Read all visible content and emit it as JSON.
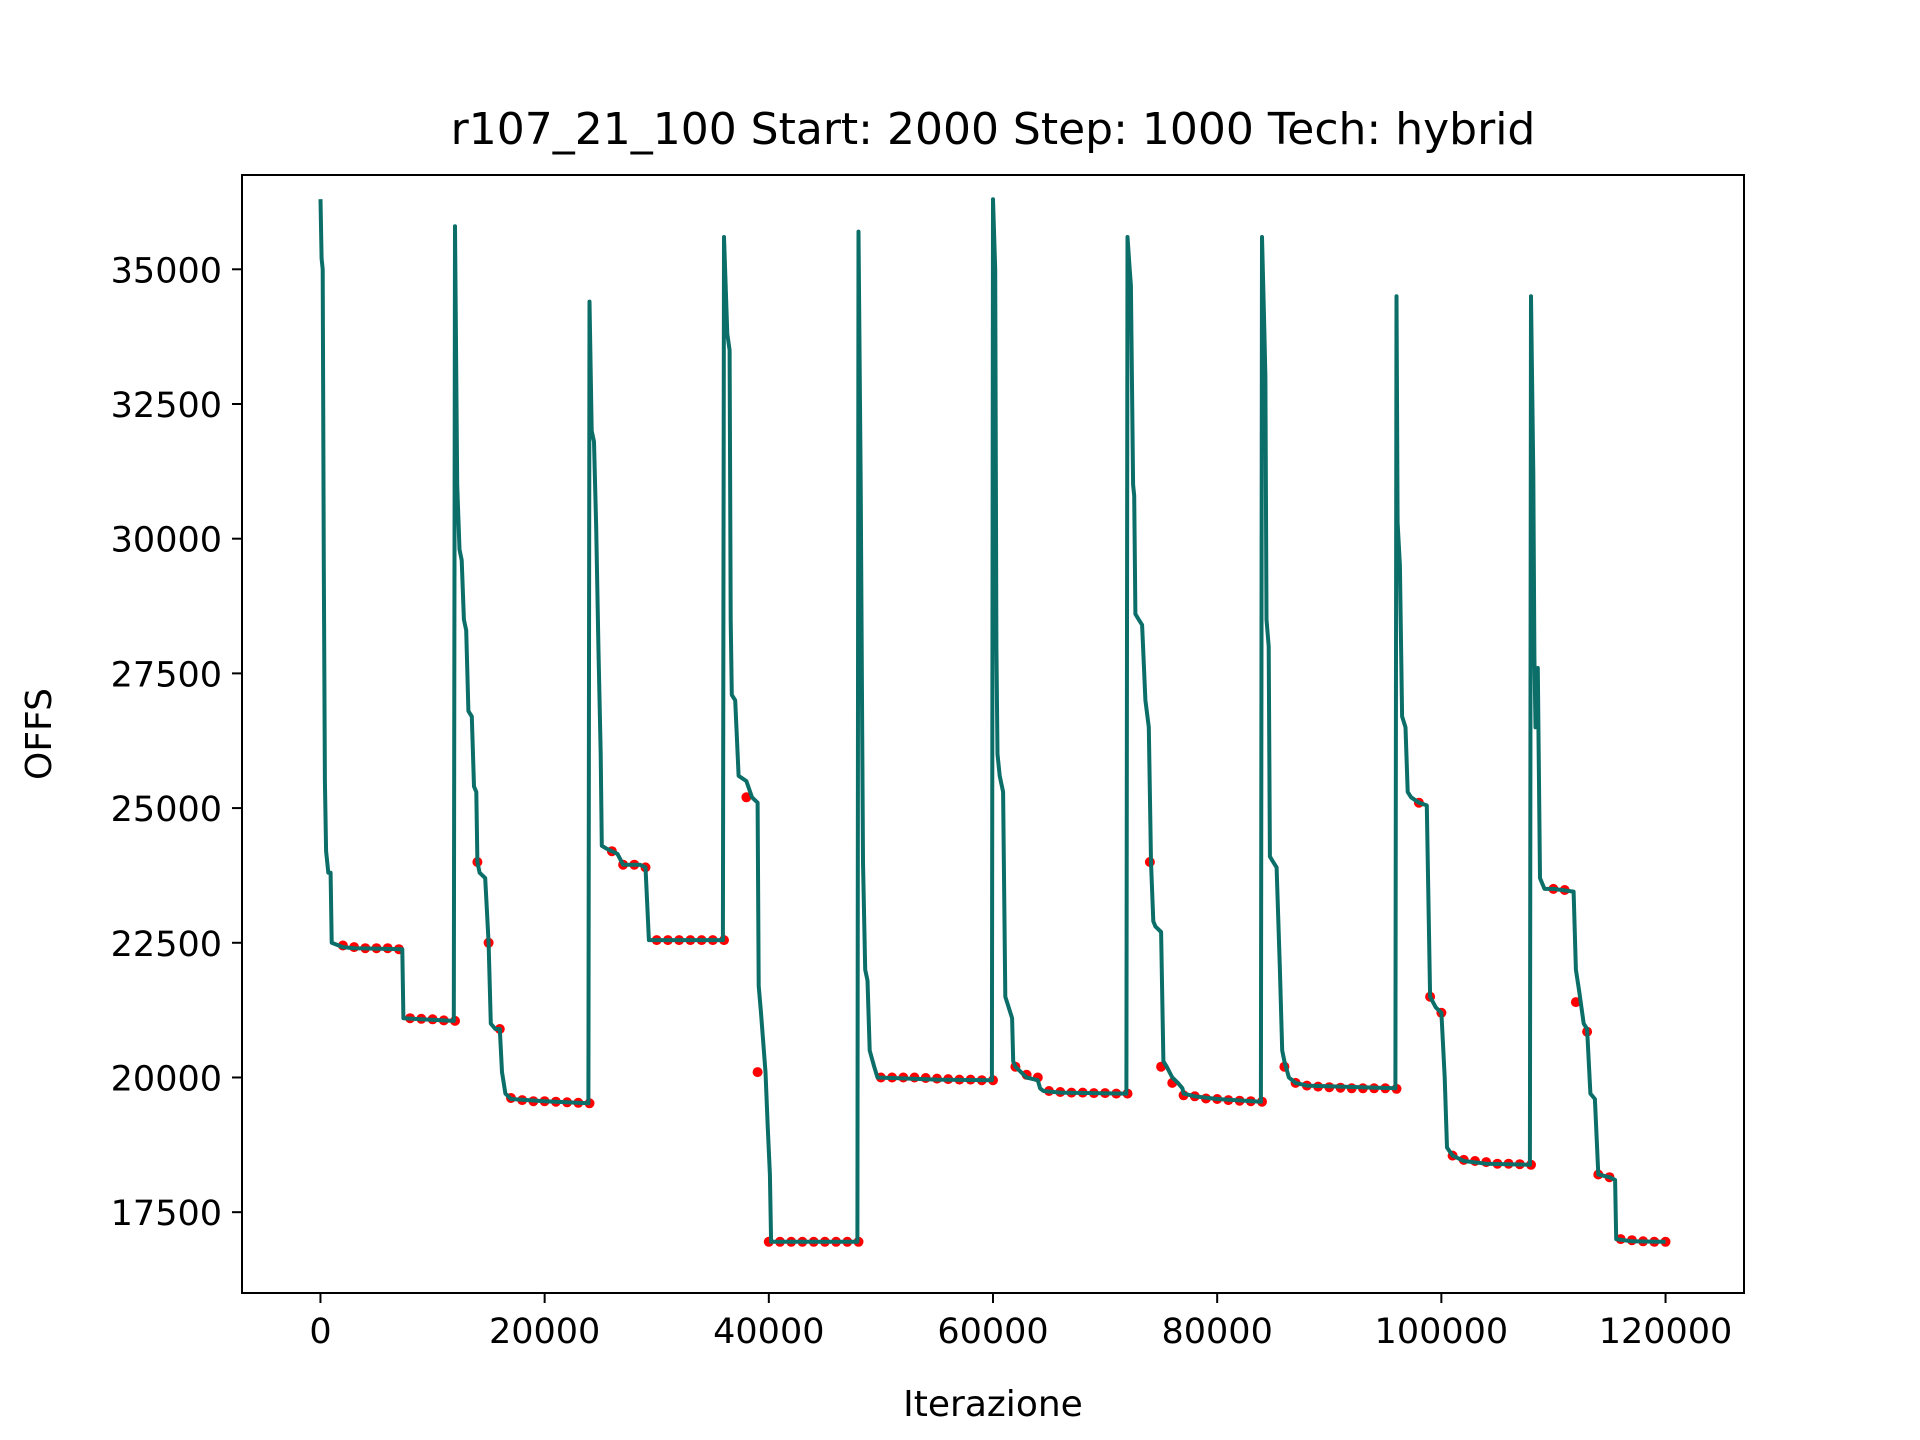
{
  "chart_data": {
    "type": "line",
    "title": "r107_21_100 Start: 2000 Step: 1000 Tech: hybrid",
    "xlabel": "Iterazione",
    "ylabel": "OFFS",
    "xlim": [
      -7000,
      127000
    ],
    "ylim": [
      16000,
      36750
    ],
    "x_ticks": [
      0,
      20000,
      40000,
      60000,
      80000,
      100000,
      120000
    ],
    "x_tick_labels": [
      "0",
      "20000",
      "40000",
      "60000",
      "80000",
      "100000",
      "120000"
    ],
    "y_ticks": [
      17500,
      20000,
      22500,
      25000,
      27500,
      30000,
      32500,
      35000
    ],
    "y_tick_labels": [
      "17500",
      "20000",
      "22500",
      "25000",
      "27500",
      "30000",
      "32500",
      "35000"
    ],
    "grid": false,
    "colors": {
      "line": "#0b6e68",
      "markers": "#ff0000",
      "axes": "#000000",
      "background": "#ffffff"
    },
    "series": [
      {
        "kind": "line",
        "points": [
          [
            0,
            36300
          ],
          [
            100,
            35200
          ],
          [
            200,
            35000
          ],
          [
            300,
            29500
          ],
          [
            400,
            25500
          ],
          [
            500,
            24200
          ],
          [
            700,
            23800
          ],
          [
            900,
            23800
          ],
          [
            1000,
            22500
          ],
          [
            2000,
            22420
          ],
          [
            3000,
            22400
          ],
          [
            7300,
            22380
          ],
          [
            7400,
            21100
          ],
          [
            9000,
            21080
          ],
          [
            11900,
            21050
          ],
          [
            12000,
            35800
          ],
          [
            12200,
            31000
          ],
          [
            12400,
            29800
          ],
          [
            12600,
            29600
          ],
          [
            12800,
            28500
          ],
          [
            13000,
            28300
          ],
          [
            13200,
            26800
          ],
          [
            13500,
            26700
          ],
          [
            13700,
            25400
          ],
          [
            13900,
            25300
          ],
          [
            14000,
            24000
          ],
          [
            14200,
            23800
          ],
          [
            14700,
            23700
          ],
          [
            15000,
            22500
          ],
          [
            15200,
            21000
          ],
          [
            15600,
            20900
          ],
          [
            16000,
            20900
          ],
          [
            16200,
            20100
          ],
          [
            16500,
            19700
          ],
          [
            17000,
            19600
          ],
          [
            20000,
            19560
          ],
          [
            23900,
            19520
          ],
          [
            24000,
            34400
          ],
          [
            24200,
            32000
          ],
          [
            24400,
            31800
          ],
          [
            24600,
            30200
          ],
          [
            24800,
            28000
          ],
          [
            25000,
            26000
          ],
          [
            25100,
            24300
          ],
          [
            25500,
            24250
          ],
          [
            26000,
            24200
          ],
          [
            26500,
            24150
          ],
          [
            27000,
            23950
          ],
          [
            28500,
            23950
          ],
          [
            29000,
            23900
          ],
          [
            29300,
            22550
          ],
          [
            30000,
            22550
          ],
          [
            35900,
            22550
          ],
          [
            36000,
            35600
          ],
          [
            36300,
            33800
          ],
          [
            36500,
            33500
          ],
          [
            36600,
            28500
          ],
          [
            36700,
            27100
          ],
          [
            37000,
            27000
          ],
          [
            37300,
            25600
          ],
          [
            38000,
            25500
          ],
          [
            38500,
            25200
          ],
          [
            39000,
            25100
          ],
          [
            39100,
            21700
          ],
          [
            39300,
            21200
          ],
          [
            39700,
            20100
          ],
          [
            39900,
            19100
          ],
          [
            40100,
            18200
          ],
          [
            40200,
            16950
          ],
          [
            45000,
            16950
          ],
          [
            47900,
            16950
          ],
          [
            48000,
            35700
          ],
          [
            48200,
            31000
          ],
          [
            48400,
            24000
          ],
          [
            48600,
            22000
          ],
          [
            48800,
            21800
          ],
          [
            49000,
            20500
          ],
          [
            49400,
            20200
          ],
          [
            49700,
            20000
          ],
          [
            55000,
            19960
          ],
          [
            59900,
            19950
          ],
          [
            60000,
            36300
          ],
          [
            60200,
            35000
          ],
          [
            60300,
            28000
          ],
          [
            60400,
            26000
          ],
          [
            60600,
            25600
          ],
          [
            60900,
            25300
          ],
          [
            61100,
            21500
          ],
          [
            61400,
            21300
          ],
          [
            61700,
            21100
          ],
          [
            61800,
            20300
          ],
          [
            62000,
            20200
          ],
          [
            63000,
            20000
          ],
          [
            64000,
            19950
          ],
          [
            64200,
            19800
          ],
          [
            64500,
            19750
          ],
          [
            66000,
            19720
          ],
          [
            71900,
            19700
          ],
          [
            72000,
            35600
          ],
          [
            72200,
            35000
          ],
          [
            72300,
            34700
          ],
          [
            72500,
            31000
          ],
          [
            72600,
            30800
          ],
          [
            72700,
            28600
          ],
          [
            73000,
            28500
          ],
          [
            73300,
            28400
          ],
          [
            73600,
            27000
          ],
          [
            73900,
            26500
          ],
          [
            74100,
            24000
          ],
          [
            74300,
            22900
          ],
          [
            74500,
            22800
          ],
          [
            75000,
            22700
          ],
          [
            75200,
            20300
          ],
          [
            75500,
            20200
          ],
          [
            76000,
            20000
          ],
          [
            76500,
            19900
          ],
          [
            76900,
            19800
          ],
          [
            77000,
            19700
          ],
          [
            78000,
            19650
          ],
          [
            80000,
            19600
          ],
          [
            83900,
            19550
          ],
          [
            84000,
            35600
          ],
          [
            84200,
            33900
          ],
          [
            84300,
            33000
          ],
          [
            84400,
            28500
          ],
          [
            84600,
            28000
          ],
          [
            84700,
            24100
          ],
          [
            85000,
            24000
          ],
          [
            85300,
            23900
          ],
          [
            85600,
            22000
          ],
          [
            85800,
            20500
          ],
          [
            86000,
            20300
          ],
          [
            86400,
            20000
          ],
          [
            87000,
            19900
          ],
          [
            88000,
            19850
          ],
          [
            95900,
            19800
          ],
          [
            96000,
            34500
          ],
          [
            96100,
            30300
          ],
          [
            96300,
            29500
          ],
          [
            96500,
            26700
          ],
          [
            96800,
            26500
          ],
          [
            97000,
            25300
          ],
          [
            97300,
            25200
          ],
          [
            98000,
            25100
          ],
          [
            98700,
            25050
          ],
          [
            99000,
            21500
          ],
          [
            99500,
            21300
          ],
          [
            100000,
            21200
          ],
          [
            100300,
            20000
          ],
          [
            100500,
            18700
          ],
          [
            101000,
            18550
          ],
          [
            102000,
            18450
          ],
          [
            104000,
            18400
          ],
          [
            107900,
            18380
          ],
          [
            108000,
            34500
          ],
          [
            108200,
            31200
          ],
          [
            108300,
            27800
          ],
          [
            108400,
            26500
          ],
          [
            108600,
            27600
          ],
          [
            108800,
            23700
          ],
          [
            109200,
            23500
          ],
          [
            110000,
            23500
          ],
          [
            111800,
            23450
          ],
          [
            112000,
            22000
          ],
          [
            112300,
            21600
          ],
          [
            112700,
            21000
          ],
          [
            113000,
            20900
          ],
          [
            113300,
            19700
          ],
          [
            113700,
            19600
          ],
          [
            114000,
            18200
          ],
          [
            115000,
            18150
          ],
          [
            115500,
            18100
          ],
          [
            115600,
            17000
          ],
          [
            117000,
            16960
          ],
          [
            120000,
            16950
          ]
        ]
      },
      {
        "kind": "markers",
        "points": [
          [
            2000,
            22450
          ],
          [
            3000,
            22420
          ],
          [
            4000,
            22400
          ],
          [
            5000,
            22400
          ],
          [
            6000,
            22400
          ],
          [
            7000,
            22380
          ],
          [
            8000,
            21100
          ],
          [
            9000,
            21090
          ],
          [
            10000,
            21080
          ],
          [
            11000,
            21060
          ],
          [
            12000,
            21050
          ],
          [
            14000,
            24000
          ],
          [
            15000,
            22500
          ],
          [
            16000,
            20900
          ],
          [
            17000,
            19620
          ],
          [
            18000,
            19580
          ],
          [
            19000,
            19560
          ],
          [
            20000,
            19560
          ],
          [
            21000,
            19550
          ],
          [
            22000,
            19540
          ],
          [
            23000,
            19530
          ],
          [
            24000,
            19520
          ],
          [
            26000,
            24200
          ],
          [
            27000,
            23950
          ],
          [
            28000,
            23950
          ],
          [
            29000,
            23900
          ],
          [
            30000,
            22550
          ],
          [
            31000,
            22550
          ],
          [
            32000,
            22550
          ],
          [
            33000,
            22550
          ],
          [
            34000,
            22550
          ],
          [
            35000,
            22550
          ],
          [
            36000,
            22550
          ],
          [
            38000,
            25200
          ],
          [
            39000,
            20100
          ],
          [
            40000,
            16950
          ],
          [
            41000,
            16950
          ],
          [
            42000,
            16950
          ],
          [
            43000,
            16950
          ],
          [
            44000,
            16950
          ],
          [
            45000,
            16950
          ],
          [
            46000,
            16950
          ],
          [
            47000,
            16950
          ],
          [
            48000,
            16950
          ],
          [
            50000,
            20000
          ],
          [
            51000,
            20000
          ],
          [
            52000,
            20000
          ],
          [
            53000,
            20000
          ],
          [
            54000,
            19990
          ],
          [
            55000,
            19980
          ],
          [
            56000,
            19970
          ],
          [
            57000,
            19960
          ],
          [
            58000,
            19960
          ],
          [
            59000,
            19950
          ],
          [
            60000,
            19950
          ],
          [
            62000,
            20200
          ],
          [
            63000,
            20050
          ],
          [
            64000,
            20000
          ],
          [
            65000,
            19750
          ],
          [
            66000,
            19730
          ],
          [
            67000,
            19720
          ],
          [
            68000,
            19720
          ],
          [
            69000,
            19710
          ],
          [
            70000,
            19710
          ],
          [
            71000,
            19700
          ],
          [
            72000,
            19700
          ],
          [
            74000,
            24000
          ],
          [
            75000,
            20200
          ],
          [
            76000,
            19900
          ],
          [
            77000,
            19670
          ],
          [
            78000,
            19650
          ],
          [
            79000,
            19610
          ],
          [
            80000,
            19600
          ],
          [
            81000,
            19580
          ],
          [
            82000,
            19570
          ],
          [
            83000,
            19560
          ],
          [
            84000,
            19550
          ],
          [
            86000,
            20200
          ],
          [
            87000,
            19900
          ],
          [
            88000,
            19850
          ],
          [
            89000,
            19830
          ],
          [
            90000,
            19820
          ],
          [
            91000,
            19810
          ],
          [
            92000,
            19800
          ],
          [
            93000,
            19800
          ],
          [
            94000,
            19800
          ],
          [
            95000,
            19800
          ],
          [
            96000,
            19790
          ],
          [
            98000,
            25100
          ],
          [
            99000,
            21500
          ],
          [
            100000,
            21200
          ],
          [
            101000,
            18550
          ],
          [
            102000,
            18470
          ],
          [
            103000,
            18450
          ],
          [
            104000,
            18430
          ],
          [
            105000,
            18400
          ],
          [
            106000,
            18400
          ],
          [
            107000,
            18390
          ],
          [
            108000,
            18380
          ],
          [
            110000,
            23500
          ],
          [
            111000,
            23480
          ],
          [
            112000,
            21400
          ],
          [
            113000,
            20850
          ],
          [
            114000,
            18200
          ],
          [
            115000,
            18150
          ],
          [
            116000,
            17000
          ],
          [
            117000,
            16980
          ],
          [
            118000,
            16960
          ],
          [
            119000,
            16950
          ],
          [
            120000,
            16950
          ]
        ]
      }
    ]
  }
}
